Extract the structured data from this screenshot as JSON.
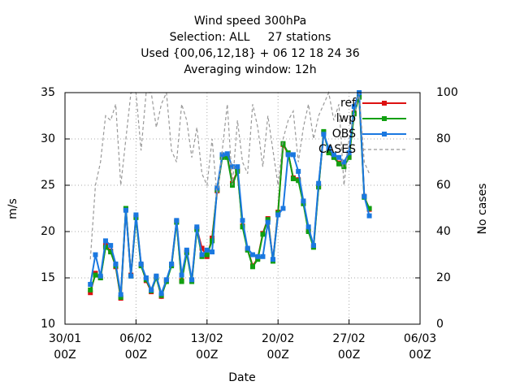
{
  "chart_data": {
    "type": "line",
    "title": [
      "Wind speed 300hPa",
      "Selection: ALL     27 stations",
      "Used {00,06,12,18} + 06 12 18 24 36",
      "Averaging window: 12h"
    ],
    "xlabel": "Date",
    "ylabel": "m/s",
    "y2label": "No cases",
    "x": [
      "01/02 12Z",
      "02/02 00Z",
      "02/02 12Z",
      "03/02 00Z",
      "03/02 12Z",
      "04/02 00Z",
      "04/02 12Z",
      "05/02 00Z",
      "05/02 12Z",
      "06/02 00Z",
      "06/02 12Z",
      "07/02 00Z",
      "07/02 12Z",
      "08/02 00Z",
      "08/02 12Z",
      "09/02 00Z",
      "09/02 12Z",
      "10/02 00Z",
      "10/02 12Z",
      "11/02 00Z",
      "11/02 12Z",
      "12/02 00Z",
      "12/02 12Z",
      "13/02 00Z",
      "13/02 12Z",
      "14/02 00Z",
      "14/02 12Z",
      "15/02 00Z",
      "15/02 12Z",
      "16/02 00Z",
      "16/02 12Z",
      "17/02 00Z",
      "17/02 12Z",
      "18/02 00Z",
      "18/02 12Z",
      "19/02 00Z",
      "19/02 12Z",
      "20/02 00Z",
      "20/02 12Z",
      "21/02 00Z",
      "21/02 12Z",
      "22/02 00Z",
      "22/02 12Z",
      "23/02 00Z",
      "23/02 12Z",
      "24/02 00Z",
      "24/02 12Z",
      "25/02 00Z",
      "25/02 12Z",
      "26/02 00Z",
      "26/02 12Z",
      "27/02 00Z",
      "27/02 12Z",
      "28/02 00Z",
      "28/02 12Z",
      "01/03 00Z"
    ],
    "series": [
      {
        "name": "ref",
        "color": "#dd1111",
        "marker": true,
        "values": [
          13.4,
          15.5,
          15.0,
          18.5,
          17.9,
          16.2,
          12.8,
          22.4,
          15.3,
          21.6,
          16.4,
          14.7,
          13.5,
          15.1,
          13.0,
          14.7,
          16.4,
          21.1,
          14.7,
          17.8,
          14.7,
          20.3,
          18.2,
          17.3,
          19.3,
          24.4,
          28.1,
          28.1,
          25.2,
          26.6,
          20.6,
          18.1,
          16.3,
          17.1,
          19.8,
          21.4,
          16.9,
          22.1,
          29.4,
          28.4,
          25.8,
          25.6,
          23.1,
          20.1,
          18.4,
          24.9,
          30.7,
          28.6,
          28.1,
          27.4,
          27.1,
          28.1,
          32.8,
          34.6,
          23.8,
          22.4
        ]
      },
      {
        "name": "lwp",
        "color": "#11a011",
        "marker": true,
        "values": [
          13.7,
          15.3,
          15.0,
          18.3,
          17.8,
          16.3,
          12.9,
          22.5,
          15.2,
          21.5,
          16.3,
          14.8,
          13.6,
          15.0,
          13.1,
          14.6,
          16.3,
          21.0,
          14.6,
          17.7,
          14.6,
          20.2,
          17.3,
          17.5,
          19.0,
          24.5,
          28.0,
          28.0,
          25.0,
          26.5,
          20.5,
          18.0,
          16.2,
          17.0,
          19.7,
          21.3,
          16.8,
          22.0,
          29.5,
          28.5,
          25.7,
          25.5,
          23.0,
          20.0,
          18.3,
          24.8,
          30.8,
          28.5,
          28.0,
          27.3,
          27.0,
          28.0,
          32.7,
          34.5,
          23.7,
          22.5
        ]
      },
      {
        "name": "OBS",
        "color": "#1a78e0",
        "marker": true,
        "values": [
          14.3,
          17.5,
          15.2,
          19.0,
          18.5,
          16.5,
          13.2,
          22.3,
          15.2,
          21.8,
          16.5,
          15.0,
          13.7,
          15.2,
          13.3,
          14.8,
          16.5,
          21.2,
          15.3,
          18.0,
          14.8,
          20.5,
          17.5,
          18.0,
          17.8,
          24.7,
          28.3,
          28.4,
          27.0,
          27.0,
          21.2,
          18.2,
          17.5,
          17.3,
          17.3,
          21.0,
          17.0,
          21.8,
          22.5,
          28.3,
          28.3,
          26.5,
          23.3,
          20.5,
          18.5,
          25.2,
          30.5,
          29.0,
          28.3,
          28.0,
          27.5,
          28.5,
          33.5,
          35.0,
          23.8,
          21.7
        ]
      },
      {
        "name": "CASES",
        "color": "#999999",
        "dashed": true,
        "axis": "y2",
        "values": [
          28,
          60,
          70,
          90,
          88,
          95,
          60,
          80,
          100,
          100,
          75,
          100,
          100,
          85,
          95,
          100,
          75,
          70,
          95,
          88,
          72,
          85,
          65,
          60,
          80,
          55,
          75,
          95,
          60,
          88,
          70,
          65,
          95,
          85,
          68,
          90,
          75,
          60,
          80,
          88,
          92,
          70,
          85,
          95,
          80,
          90,
          95,
          100,
          88,
          95,
          60,
          80,
          90,
          100,
          70,
          65
        ]
      }
    ],
    "xlim": [
      "30/01 00Z",
      "06/03 00Z"
    ],
    "xticks": [
      "30/01 00Z",
      "06/02 00Z",
      "13/02 00Z",
      "20/02 00Z",
      "27/02 00Z",
      "06/03 00Z"
    ],
    "ylim": [
      10,
      35
    ],
    "yticks": [
      10,
      15,
      20,
      25,
      30,
      35
    ],
    "y2lim": [
      0,
      100
    ],
    "y2ticks": [
      0,
      20,
      40,
      60,
      80,
      100
    ],
    "grid": true,
    "legend": "top-right"
  }
}
